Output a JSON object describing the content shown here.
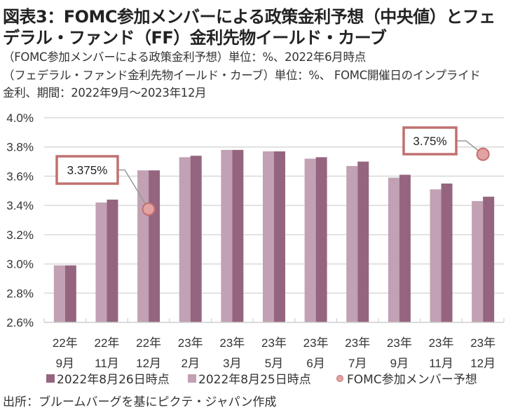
{
  "title": {
    "line1": "図表3：FOMC参加メンバーによる政策金利予想（中央値）とフェ",
    "line2": "デラル・ファンド（FF）金利先物イールド・カーブ"
  },
  "subtitle": {
    "line1": "（FOMC参加メンバーによる政策金利予想）単位：%、2022年6月時点",
    "line2": "（フェデラル・ファンド金利先物イールド・カーブ）単位：%、 FOMC開催日のインプライド",
    "line3": "金利、期間：2022年9月～2023年12月"
  },
  "footer": "出所：ブルームバーグを基にピクテ・ジャパン作成",
  "colors": {
    "dark_bar": "#95657f",
    "light_bar": "#c1a1b3",
    "dot_fill": "#e2a2a2",
    "dot_stroke": "#c46e6e",
    "callout_border": "#c07070",
    "grid": "#d9d9d9"
  },
  "chart_data": {
    "type": "bar",
    "title": "FOMC参加メンバーによる政策金利予想（中央値）とフェデラル・ファンド（FF）金利先物イールド・カーブ",
    "xlabel": "",
    "ylabel": "",
    "ylim": [
      2.6,
      4.0
    ],
    "yticks": [
      2.6,
      2.8,
      3.0,
      3.2,
      3.4,
      3.6,
      3.8,
      4.0
    ],
    "ytick_labels": [
      "2.6%",
      "2.8%",
      "3.0%",
      "3.2%",
      "3.4%",
      "3.6%",
      "3.8%",
      "4.0%"
    ],
    "grid": true,
    "legend_position": "bottom",
    "categories": [
      {
        "year": "22年",
        "month": "9月"
      },
      {
        "year": "22年",
        "month": "11月"
      },
      {
        "year": "22年",
        "month": "12月"
      },
      {
        "year": "23年",
        "month": "2月"
      },
      {
        "year": "23年",
        "month": "3月"
      },
      {
        "year": "23年",
        "month": "5月"
      },
      {
        "year": "23年",
        "month": "6月"
      },
      {
        "year": "23年",
        "month": "7月"
      },
      {
        "year": "23年",
        "month": "9月"
      },
      {
        "year": "23年",
        "month": "11月"
      },
      {
        "year": "23年",
        "month": "12月"
      }
    ],
    "series": [
      {
        "name": "2022年8月25日時点",
        "kind": "bar",
        "values": [
          2.99,
          3.42,
          3.64,
          3.73,
          3.78,
          3.77,
          3.72,
          3.67,
          3.59,
          3.51,
          3.43
        ]
      },
      {
        "name": "2022年8月26日時点",
        "kind": "bar",
        "values": [
          2.99,
          3.44,
          3.64,
          3.74,
          3.78,
          3.77,
          3.73,
          3.7,
          3.61,
          3.55,
          3.46
        ]
      },
      {
        "name": "FOMC参加メンバー予想",
        "kind": "point",
        "points": [
          {
            "category_index": 2,
            "value": 3.375,
            "label": "3.375%"
          },
          {
            "category_index": 10,
            "value": 3.75,
            "label": "3.75%"
          }
        ]
      }
    ],
    "legend": [
      {
        "label": "2022年8月26日時点",
        "marker": "square-dark"
      },
      {
        "label": "2022年8月25日時点",
        "marker": "square-light"
      },
      {
        "label": "FOMC参加メンバー予想",
        "marker": "dot"
      }
    ]
  }
}
